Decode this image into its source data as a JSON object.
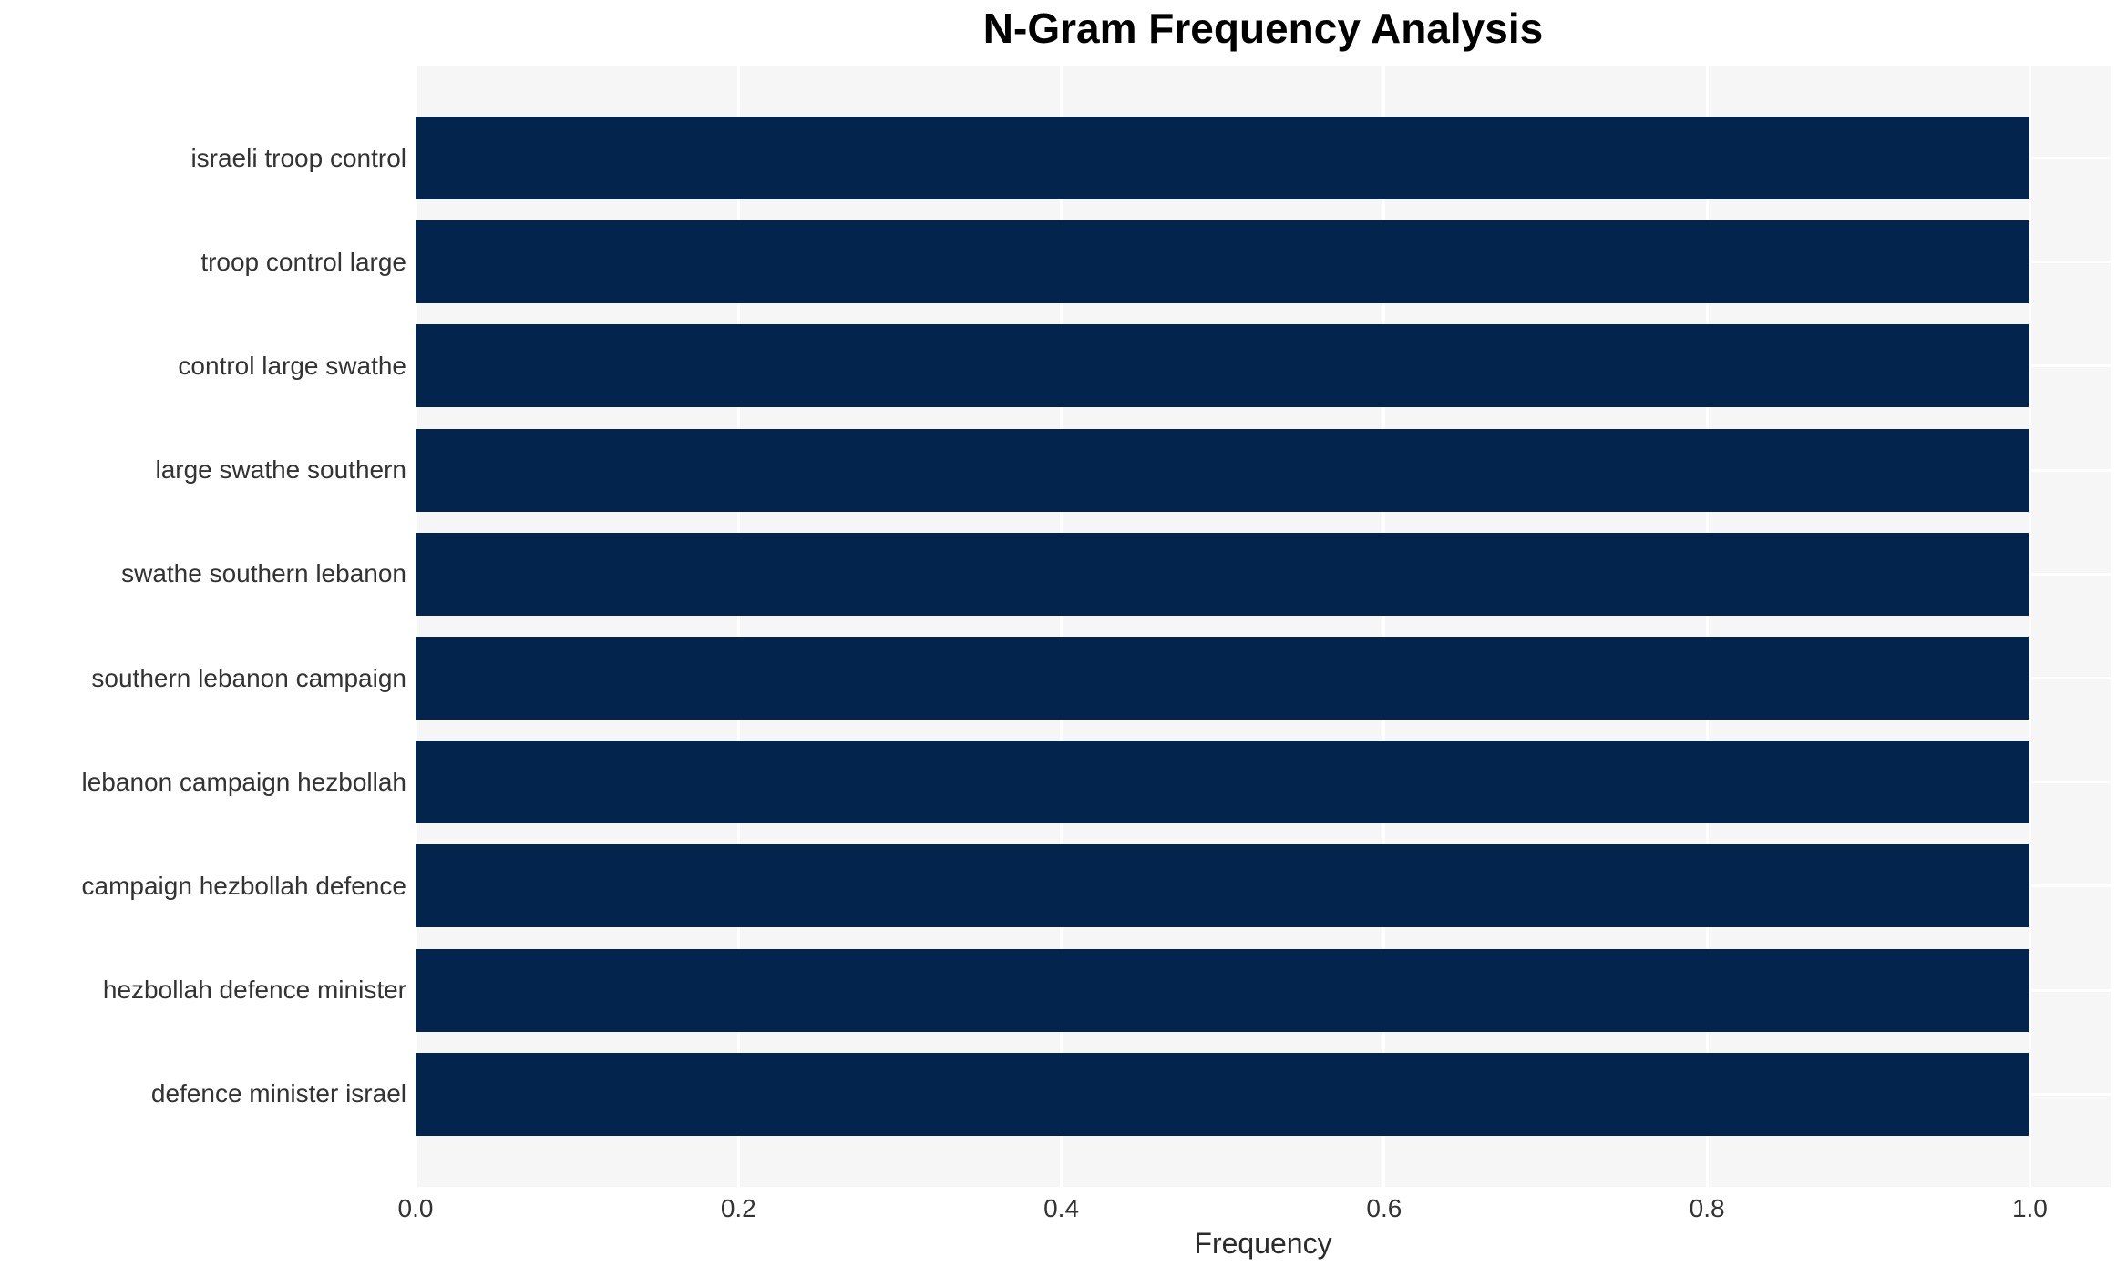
{
  "chart_data": {
    "type": "bar",
    "orientation": "horizontal",
    "title": "N-Gram Frequency Analysis",
    "xlabel": "Frequency",
    "ylabel": "",
    "categories": [
      "israeli troop control",
      "troop control large",
      "control large swathe",
      "large swathe southern",
      "swathe southern lebanon",
      "southern lebanon campaign",
      "lebanon campaign hezbollah",
      "campaign hezbollah defence",
      "hezbollah defence minister",
      "defence minister israel"
    ],
    "values": [
      1.0,
      1.0,
      1.0,
      1.0,
      1.0,
      1.0,
      1.0,
      1.0,
      1.0,
      1.0
    ],
    "xlim": [
      0,
      1.05
    ],
    "x_ticks": [
      0.0,
      0.2,
      0.4,
      0.6,
      0.8,
      1.0
    ],
    "x_tick_labels": [
      "0.0",
      "0.2",
      "0.4",
      "0.6",
      "0.8",
      "1.0"
    ],
    "grid": true,
    "legend": false,
    "colors": {
      "bar": "#03244d",
      "plot_background": "#f6f6f7",
      "gridline": "#ffffff",
      "title_text": "#000000",
      "tick_text": "#333333"
    }
  }
}
